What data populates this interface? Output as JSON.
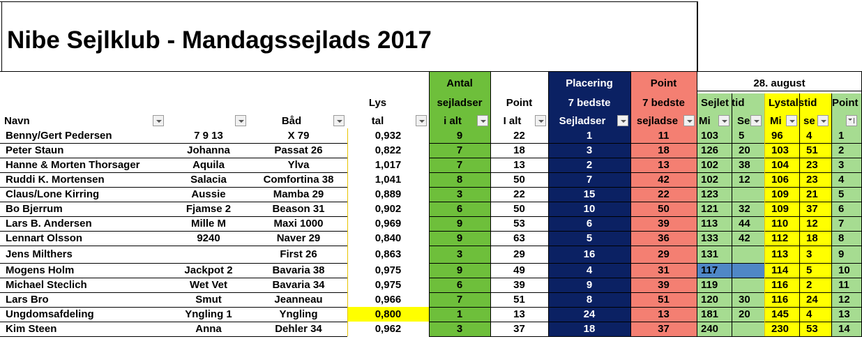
{
  "title": "Nibe Sejlklub - Mandagssejlads 2017",
  "colors": {
    "green": "#6ebf3b",
    "navy": "#0b2163",
    "salmon": "#f47f72",
    "lightgreen": "#a6dc91",
    "yellow": "#ffff00",
    "blue_cell": "#4f87c6"
  },
  "headers": {
    "row1": {
      "antal": "Antal",
      "placering": "Placering",
      "point": "Point",
      "date": "28. august"
    },
    "row2": {
      "lys": "Lys",
      "antal": "sejladser",
      "point": "Point",
      "placering": "7 bedste",
      "point7": "7 bedste",
      "sejlet": "Sejlet tid",
      "lystal": "Lystalstid",
      "pointcut": "Point"
    },
    "row3": {
      "navn": "Navn",
      "baad": "Båd",
      "lys": "tal",
      "antal": "i alt",
      "point": "I alt",
      "placering": "Sejladser",
      "point7": "sejladse",
      "sejlet_min": "Mi",
      "sejlet_sek": "Se",
      "lystal_min": "Mi",
      "lystal_sek": "se"
    }
  },
  "rows": [
    {
      "navn": "Benny/Gert Pedersen",
      "nr": "7 9 13",
      "baad": "X 79",
      "lys": "0,932",
      "antal": "9",
      "point": "22",
      "plac": "1",
      "p7": "11",
      "smin": "103",
      "ssek": "5",
      "lmin": "96",
      "lsek": "4",
      "pt": "1"
    },
    {
      "navn": "Peter Staun",
      "nr": "Johanna",
      "baad": "Passat 26",
      "lys": "0,822",
      "antal": "7",
      "point": "18",
      "plac": "3",
      "p7": "18",
      "smin": "126",
      "ssek": "20",
      "lmin": "103",
      "lsek": "51",
      "pt": "2"
    },
    {
      "navn": "Hanne & Morten Thorsager",
      "nr": "Aquila",
      "baad": "Ylva",
      "lys": "1,017",
      "antal": "7",
      "point": "13",
      "plac": "2",
      "p7": "13",
      "smin": "102",
      "ssek": "38",
      "lmin": "104",
      "lsek": "23",
      "pt": "3"
    },
    {
      "navn": "Ruddi K. Mortensen",
      "nr": "Salacia",
      "baad": "Comfortina 38",
      "lys": "1,041",
      "antal": "8",
      "point": "50",
      "plac": "7",
      "p7": "42",
      "smin": "102",
      "ssek": "12",
      "lmin": "106",
      "lsek": "23",
      "pt": "4"
    },
    {
      "navn": "Claus/Lone Kirring",
      "nr": "Aussie",
      "baad": "Mamba 29",
      "lys": "0,889",
      "antal": "3",
      "point": "22",
      "plac": "15",
      "p7": "22",
      "smin": "123",
      "ssek": "",
      "lmin": "109",
      "lsek": "21",
      "pt": "5"
    },
    {
      "navn": "Bo Bjerrum",
      "nr": "Fjamse 2",
      "baad": "Beason 31",
      "lys": "0,902",
      "antal": "6",
      "point": "50",
      "plac": "10",
      "p7": "50",
      "smin": "121",
      "ssek": "32",
      "lmin": "109",
      "lsek": "37",
      "pt": "6"
    },
    {
      "navn": "Lars B. Andersen",
      "nr": "Mille M",
      "baad": "Maxi 1000",
      "lys": "0,969",
      "antal": "9",
      "point": "53",
      "plac": "6",
      "p7": "39",
      "smin": "113",
      "ssek": "44",
      "lmin": "110",
      "lsek": "12",
      "pt": "7"
    },
    {
      "navn": "Lennart Olsson",
      "nr": "9240",
      "baad": "Naver 29",
      "lys": "0,840",
      "antal": "9",
      "point": "63",
      "plac": "5",
      "p7": "36",
      "smin": "133",
      "ssek": "42",
      "lmin": "112",
      "lsek": "18",
      "pt": "8"
    },
    {
      "navn": "Jens Milthers",
      "nr": "",
      "baad": "First 26",
      "lys": "0,863",
      "antal": "3",
      "point": "29",
      "plac": "16",
      "p7": "29",
      "smin": "131",
      "ssek": "",
      "lmin": "113",
      "lsek": "3",
      "pt": "9"
    },
    {
      "navn": "Mogens Holm",
      "nr": "Jackpot 2",
      "baad": "Bavaria 38",
      "lys": "0,975",
      "antal": "9",
      "point": "49",
      "plac": "4",
      "p7": "31",
      "smin": "117",
      "ssek": "",
      "lmin": "114",
      "lsek": "5",
      "pt": "10"
    },
    {
      "navn": "Michael Steclich",
      "nr": "Wet Vet",
      "baad": "Bavaria 34",
      "lys": "0,975",
      "antal": "6",
      "point": "39",
      "plac": "9",
      "p7": "39",
      "smin": "119",
      "ssek": "",
      "lmin": "116",
      "lsek": "2",
      "pt": "11"
    },
    {
      "navn": "Lars Bro",
      "nr": "Smut",
      "baad": "Jeanneau",
      "lys": "0,966",
      "antal": "7",
      "point": "51",
      "plac": "8",
      "p7": "51",
      "smin": "120",
      "ssek": "30",
      "lmin": "116",
      "lsek": "24",
      "pt": "12"
    },
    {
      "navn": "Ungdomsafdeling",
      "nr": "Yngling 1",
      "baad": "Yngling",
      "lys": "0,800",
      "antal": "1",
      "point": "13",
      "plac": "24",
      "p7": "13",
      "smin": "181",
      "ssek": "20",
      "lmin": "145",
      "lsek": "4",
      "pt": "13"
    },
    {
      "navn": "Kim Steen",
      "nr": "Anna",
      "baad": "Dehler 34",
      "lys": "0,962",
      "antal": "3",
      "point": "37",
      "plac": "18",
      "p7": "37",
      "smin": "240",
      "ssek": "",
      "lmin": "230",
      "lsek": "53",
      "pt": "14"
    }
  ]
}
